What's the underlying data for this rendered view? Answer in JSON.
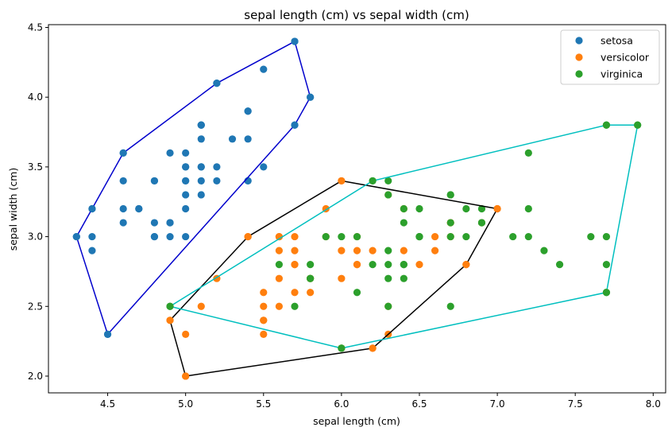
{
  "chart_data": {
    "type": "scatter",
    "title": "sepal length (cm) vs sepal width (cm)",
    "xlabel": "sepal length (cm)",
    "ylabel": "sepal width (cm)",
    "xlim": [
      4.12,
      8.08
    ],
    "ylim": [
      1.88,
      4.52
    ],
    "xticks": [
      4.5,
      5.0,
      5.5,
      6.0,
      6.5,
      7.0,
      7.5,
      8.0
    ],
    "yticks": [
      2.0,
      2.5,
      3.0,
      3.5,
      4.0,
      4.5
    ],
    "legend_position": "top-right",
    "grid": false,
    "series": [
      {
        "name": "setosa",
        "color": "#1f77b4",
        "hull_color": "#0000cc",
        "points": [
          [
            5.1,
            3.5
          ],
          [
            4.9,
            3.0
          ],
          [
            4.7,
            3.2
          ],
          [
            4.6,
            3.1
          ],
          [
            5.0,
            3.6
          ],
          [
            5.4,
            3.9
          ],
          [
            4.6,
            3.4
          ],
          [
            5.0,
            3.4
          ],
          [
            4.4,
            2.9
          ],
          [
            4.9,
            3.1
          ],
          [
            5.4,
            3.7
          ],
          [
            4.8,
            3.4
          ],
          [
            4.8,
            3.0
          ],
          [
            4.3,
            3.0
          ],
          [
            5.8,
            4.0
          ],
          [
            5.7,
            4.4
          ],
          [
            5.4,
            3.9
          ],
          [
            5.1,
            3.5
          ],
          [
            5.7,
            3.8
          ],
          [
            5.1,
            3.8
          ],
          [
            5.4,
            3.4
          ],
          [
            5.1,
            3.7
          ],
          [
            4.6,
            3.6
          ],
          [
            5.1,
            3.3
          ],
          [
            4.8,
            3.4
          ],
          [
            5.0,
            3.0
          ],
          [
            5.0,
            3.4
          ],
          [
            5.2,
            3.5
          ],
          [
            5.2,
            3.4
          ],
          [
            4.7,
            3.2
          ],
          [
            4.8,
            3.1
          ],
          [
            5.4,
            3.4
          ],
          [
            5.2,
            4.1
          ],
          [
            5.5,
            4.2
          ],
          [
            4.9,
            3.1
          ],
          [
            5.0,
            3.2
          ],
          [
            5.5,
            3.5
          ],
          [
            4.9,
            3.6
          ],
          [
            4.4,
            3.0
          ],
          [
            5.1,
            3.4
          ],
          [
            5.0,
            3.5
          ],
          [
            4.5,
            2.3
          ],
          [
            4.4,
            3.2
          ],
          [
            5.0,
            3.5
          ],
          [
            5.1,
            3.8
          ],
          [
            4.8,
            3.0
          ],
          [
            5.1,
            3.8
          ],
          [
            4.6,
            3.2
          ],
          [
            5.3,
            3.7
          ],
          [
            5.0,
            3.3
          ]
        ],
        "hull": [
          [
            4.5,
            2.3
          ],
          [
            5.7,
            3.8
          ],
          [
            5.8,
            4.0
          ],
          [
            5.7,
            4.4
          ],
          [
            5.2,
            4.1
          ],
          [
            4.6,
            3.6
          ],
          [
            4.4,
            3.2
          ],
          [
            4.3,
            3.0
          ]
        ]
      },
      {
        "name": "versicolor",
        "color": "#ff7f0e",
        "hull_color": "#000000",
        "points": [
          [
            7.0,
            3.2
          ],
          [
            6.4,
            3.2
          ],
          [
            6.9,
            3.1
          ],
          [
            5.5,
            2.3
          ],
          [
            6.5,
            2.8
          ],
          [
            5.7,
            2.8
          ],
          [
            6.3,
            3.3
          ],
          [
            4.9,
            2.4
          ],
          [
            6.6,
            2.9
          ],
          [
            5.2,
            2.7
          ],
          [
            5.0,
            2.0
          ],
          [
            5.9,
            3.0
          ],
          [
            6.0,
            2.2
          ],
          [
            6.1,
            2.9
          ],
          [
            5.6,
            2.9
          ],
          [
            6.7,
            3.1
          ],
          [
            5.6,
            3.0
          ],
          [
            5.8,
            2.7
          ],
          [
            6.2,
            2.2
          ],
          [
            5.6,
            2.5
          ],
          [
            5.9,
            3.2
          ],
          [
            6.1,
            2.8
          ],
          [
            6.3,
            2.5
          ],
          [
            6.1,
            2.8
          ],
          [
            6.4,
            2.9
          ],
          [
            6.6,
            3.0
          ],
          [
            6.8,
            2.8
          ],
          [
            6.7,
            3.0
          ],
          [
            6.0,
            2.9
          ],
          [
            5.7,
            2.6
          ],
          [
            5.5,
            2.4
          ],
          [
            5.5,
            2.4
          ],
          [
            5.8,
            2.7
          ],
          [
            6.0,
            2.7
          ],
          [
            5.4,
            3.0
          ],
          [
            6.0,
            3.4
          ],
          [
            6.7,
            3.1
          ],
          [
            6.3,
            2.3
          ],
          [
            5.6,
            3.0
          ],
          [
            5.5,
            2.5
          ],
          [
            5.5,
            2.6
          ],
          [
            6.1,
            3.0
          ],
          [
            5.8,
            2.6
          ],
          [
            5.0,
            2.3
          ],
          [
            5.6,
            2.7
          ],
          [
            5.7,
            3.0
          ],
          [
            5.7,
            2.9
          ],
          [
            6.2,
            2.9
          ],
          [
            5.1,
            2.5
          ],
          [
            5.7,
            2.8
          ]
        ],
        "hull": [
          [
            5.0,
            2.0
          ],
          [
            6.2,
            2.2
          ],
          [
            6.8,
            2.8
          ],
          [
            7.0,
            3.2
          ],
          [
            6.0,
            3.4
          ],
          [
            5.4,
            3.0
          ],
          [
            4.9,
            2.4
          ]
        ]
      },
      {
        "name": "virginica",
        "color": "#2ca02c",
        "hull_color": "#00bfbf",
        "points": [
          [
            6.3,
            3.3
          ],
          [
            5.8,
            2.7
          ],
          [
            7.1,
            3.0
          ],
          [
            6.3,
            2.9
          ],
          [
            6.5,
            3.0
          ],
          [
            7.6,
            3.0
          ],
          [
            4.9,
            2.5
          ],
          [
            7.3,
            2.9
          ],
          [
            6.7,
            2.5
          ],
          [
            7.2,
            3.6
          ],
          [
            6.5,
            3.2
          ],
          [
            6.4,
            2.7
          ],
          [
            6.8,
            3.0
          ],
          [
            5.7,
            2.5
          ],
          [
            5.8,
            2.8
          ],
          [
            6.4,
            3.2
          ],
          [
            6.5,
            3.0
          ],
          [
            7.7,
            3.8
          ],
          [
            7.7,
            2.6
          ],
          [
            6.0,
            2.2
          ],
          [
            6.9,
            3.2
          ],
          [
            5.6,
            2.8
          ],
          [
            7.7,
            2.8
          ],
          [
            6.3,
            2.7
          ],
          [
            6.7,
            3.3
          ],
          [
            7.2,
            3.2
          ],
          [
            6.2,
            2.8
          ],
          [
            6.1,
            3.0
          ],
          [
            6.4,
            2.8
          ],
          [
            7.2,
            3.0
          ],
          [
            7.4,
            2.8
          ],
          [
            7.9,
            3.8
          ],
          [
            6.4,
            2.8
          ],
          [
            6.3,
            2.8
          ],
          [
            6.1,
            2.6
          ],
          [
            7.7,
            3.0
          ],
          [
            6.3,
            3.4
          ],
          [
            6.4,
            3.1
          ],
          [
            6.0,
            3.0
          ],
          [
            6.9,
            3.1
          ],
          [
            6.7,
            3.1
          ],
          [
            6.9,
            3.1
          ],
          [
            5.8,
            2.7
          ],
          [
            6.8,
            3.2
          ],
          [
            6.7,
            3.3
          ],
          [
            6.7,
            3.0
          ],
          [
            6.3,
            2.5
          ],
          [
            6.5,
            3.0
          ],
          [
            6.2,
            3.4
          ],
          [
            5.9,
            3.0
          ]
        ],
        "hull": [
          [
            6.0,
            2.2
          ],
          [
            7.7,
            2.6
          ],
          [
            7.9,
            3.8
          ],
          [
            7.7,
            3.8
          ],
          [
            6.2,
            3.4
          ],
          [
            4.9,
            2.5
          ]
        ]
      }
    ]
  }
}
